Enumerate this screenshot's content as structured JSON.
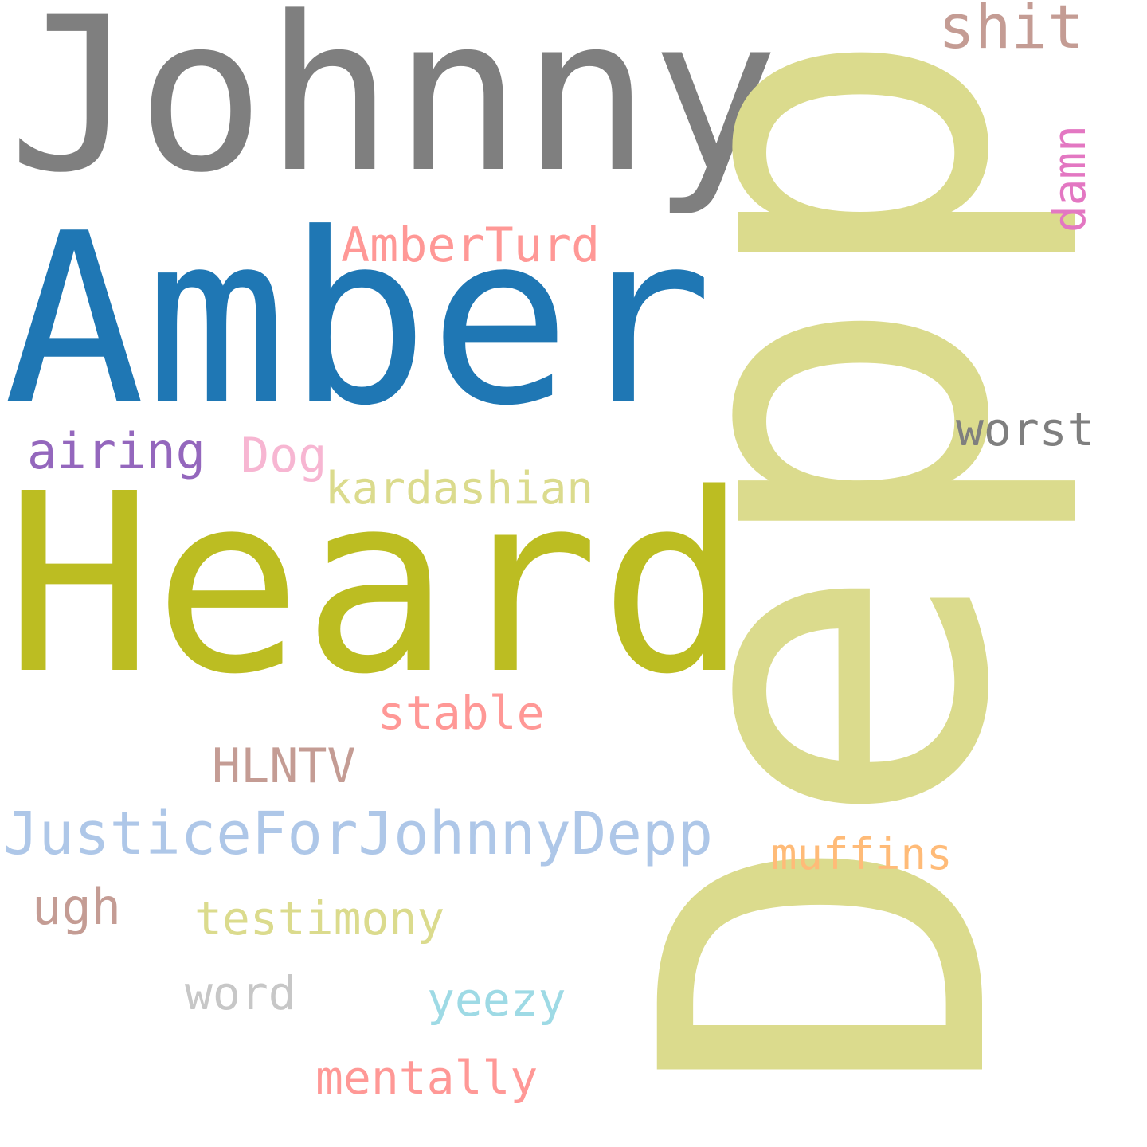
{
  "words": [
    {
      "text": "Johnny",
      "color": "#7f7f7f"
    },
    {
      "text": "Amber",
      "color": "#1f77b4"
    },
    {
      "text": "Heard",
      "color": "#bcbd22"
    },
    {
      "text": "Depp",
      "color": "#dbdb8d"
    },
    {
      "text": "shit",
      "color": "#c49c94"
    },
    {
      "text": "damn",
      "color": "#e377c2"
    },
    {
      "text": "AmberTurd",
      "color": "#ff9896"
    },
    {
      "text": "worst",
      "color": "#7f7f7f"
    },
    {
      "text": "airing",
      "color": "#9467bd"
    },
    {
      "text": "Dog",
      "color": "#f7b6d2"
    },
    {
      "text": "kardashian",
      "color": "#dbdb8d"
    },
    {
      "text": "stable",
      "color": "#ff9896"
    },
    {
      "text": "HLNTV",
      "color": "#c49c94"
    },
    {
      "text": "JusticeForJohnnyDepp",
      "color": "#aec7e8"
    },
    {
      "text": "muffins",
      "color": "#ffbb78"
    },
    {
      "text": "ugh",
      "color": "#c49c94"
    },
    {
      "text": "testimony",
      "color": "#dbdb8d"
    },
    {
      "text": "word",
      "color": "#c7c7c7"
    },
    {
      "text": "yeezy",
      "color": "#9edae5"
    },
    {
      "text": "mentally",
      "color": "#ff9896"
    }
  ]
}
